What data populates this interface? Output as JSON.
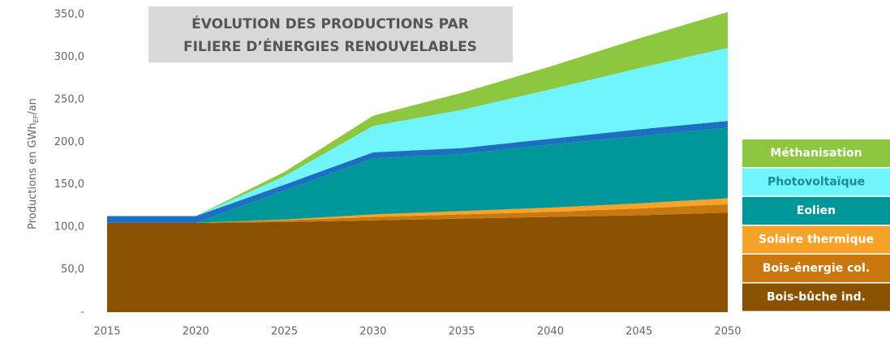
{
  "chart_data": {
    "type": "stacked_area",
    "title": [
      "ÉVOLUTION DES PRODUCTIONS PAR",
      "FILIERE D’ÉNERGIES RENOUVELABLES"
    ],
    "ylabel": {
      "text": "Productions en GWh",
      "sub": "EF",
      "suffix": "/an"
    },
    "x": [
      2015,
      2020,
      2025,
      2030,
      2035,
      2040,
      2045,
      2050
    ],
    "xlim": [
      2015,
      2050
    ],
    "xticks": [
      2015,
      2020,
      2025,
      2030,
      2035,
      2040,
      2045,
      2050
    ],
    "ylim": [
      0,
      350
    ],
    "yticks": [
      {
        "value": 0,
        "label": "-"
      },
      {
        "value": 50,
        "label": "50,0"
      },
      {
        "value": 100,
        "label": "100,0"
      },
      {
        "value": 150,
        "label": "150,0"
      },
      {
        "value": 200,
        "label": "200,0"
      },
      {
        "value": 250,
        "label": "250,0"
      },
      {
        "value": 300,
        "label": "300,0"
      },
      {
        "value": 350,
        "label": "350,0"
      }
    ],
    "series": [
      {
        "name": "Bois-bûche ind.",
        "color": "#8a5200",
        "text_color": "#ffffff",
        "values": [
          105,
          105,
          106,
          108,
          110,
          112,
          114,
          117
        ]
      },
      {
        "name": "Bois-énergie col.",
        "color": "#c8780f",
        "text_color": "#ffffff",
        "values": [
          0,
          0,
          2,
          4,
          5,
          6,
          8,
          10
        ]
      },
      {
        "name": "Solaire thermique",
        "color": "#f7a32a",
        "text_color": "#ffffff",
        "values": [
          0,
          0,
          1,
          3,
          4,
          5,
          6,
          7
        ]
      },
      {
        "name": "Eolien",
        "color": "#00979a",
        "text_color": "#ffffff",
        "values": [
          0,
          0,
          34,
          66,
          67,
          74,
          79,
          83
        ]
      },
      {
        "color": "#1d6fc2",
        "values": [
          8,
          8,
          7,
          7,
          7,
          7,
          8,
          8
        ]
      },
      {
        "name": "Photovoltaïque",
        "color": "#6ff5fb",
        "text_color": "#1b8a9a",
        "values": [
          0,
          0,
          10,
          31,
          45,
          58,
          72,
          86
        ]
      },
      {
        "name": "Méthanisation",
        "color": "#8dc63f",
        "text_color": "#ffffff",
        "values": [
          0,
          0,
          5,
          12,
          20,
          27,
          35,
          42
        ]
      }
    ]
  }
}
